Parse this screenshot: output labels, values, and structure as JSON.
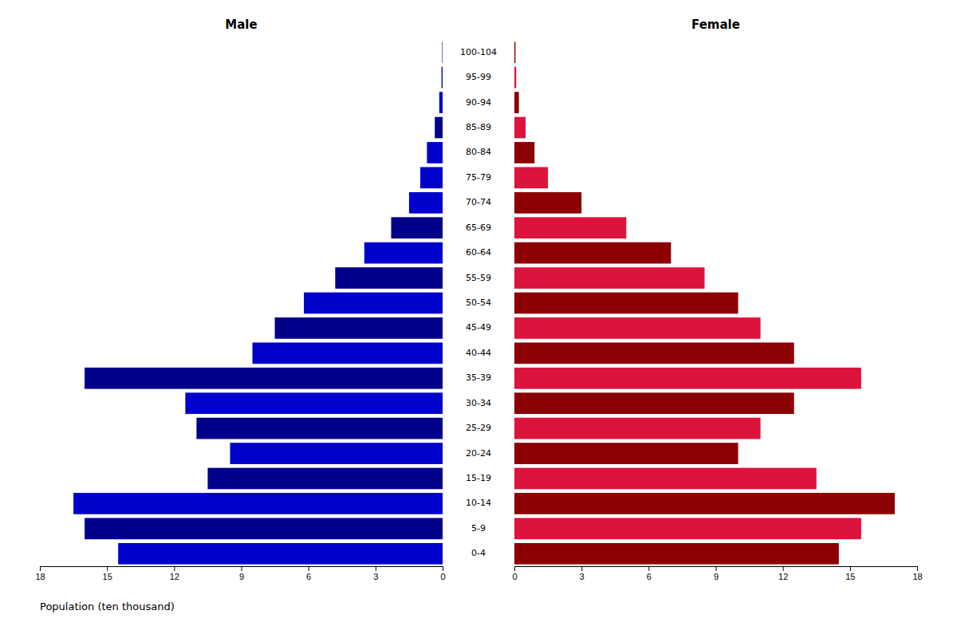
{
  "chart_data": {
    "type": "bar",
    "orientation": "horizontal",
    "xlabel": "Population (ten thousand)",
    "categories": [
      "0-4",
      "5-9",
      "10-14",
      "15-19",
      "20-24",
      "25-29",
      "30-34",
      "35-39",
      "40-44",
      "45-49",
      "50-54",
      "55-59",
      "60-64",
      "65-69",
      "70-74",
      "75-79",
      "80-84",
      "85-89",
      "90-94",
      "95-99",
      "100-104"
    ],
    "series": [
      {
        "name": "Male",
        "values": [
          14.5,
          16.0,
          16.5,
          10.5,
          9.5,
          11.0,
          11.5,
          16.0,
          8.5,
          7.5,
          6.2,
          4.8,
          3.5,
          2.3,
          1.5,
          1.0,
          0.7,
          0.35,
          0.15,
          0.05,
          0.02
        ],
        "colors": [
          "#0000CD",
          "#00008B",
          "#0000CD",
          "#00008B",
          "#0000CD",
          "#00008B",
          "#0000CD",
          "#00008B",
          "#0000CD",
          "#00008B",
          "#0000CD",
          "#00008B",
          "#0000CD",
          "#00008B",
          "#0000CD",
          "#0000CD",
          "#0000CD",
          "#00008B",
          "#0000CD",
          "#0000CD",
          "#00008B"
        ]
      },
      {
        "name": "Female",
        "values": [
          14.5,
          15.5,
          17.0,
          13.5,
          10.0,
          11.0,
          12.5,
          15.5,
          12.5,
          11.0,
          10.0,
          8.5,
          7.0,
          5.0,
          3.0,
          1.5,
          0.9,
          0.5,
          0.2,
          0.08,
          0.05
        ],
        "colors": [
          "#8B0000",
          "#DC143C",
          "#8B0000",
          "#DC143C",
          "#8B0000",
          "#DC143C",
          "#8B0000",
          "#DC143C",
          "#8B0000",
          "#DC143C",
          "#8B0000",
          "#DC143C",
          "#8B0000",
          "#DC143C",
          "#8B0000",
          "#DC143C",
          "#8B0000",
          "#DC143C",
          "#8B0000",
          "#DC143C",
          "#8B0000"
        ]
      }
    ],
    "xlim": [
      0,
      18
    ],
    "xticks": [
      0,
      3,
      6,
      9,
      12,
      15,
      18
    ]
  }
}
